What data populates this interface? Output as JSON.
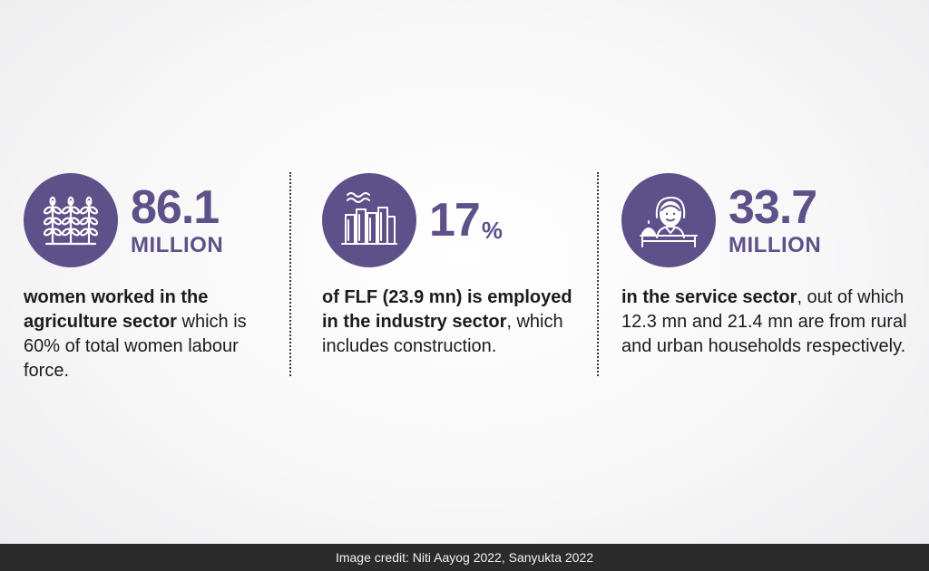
{
  "stats": [
    {
      "icon": "wheat-icon",
      "value": "86.1",
      "unit": "MILLION",
      "bold": "women worked in the agriculture sector",
      "rest": " which is 60% of total women labour force."
    },
    {
      "icon": "factory-icon",
      "value": "17",
      "unit": "%",
      "prefix": "of FLF (23.9 mn) is ",
      "bold": "employed in the industry sector",
      "rest": ", which includes construction."
    },
    {
      "icon": "service-worker-icon",
      "value": "33.7",
      "unit": "MILLION",
      "bold": "in the service sector",
      "rest": ", out of which 12.3 mn and 21.4 mn are from rural and urban households respectively."
    }
  ],
  "colors": {
    "accent": "#5e5189",
    "footer_bg": "#2b2b2b"
  },
  "footer": {
    "credit": "Image credit: Niti Aayog 2022, Sanyukta 2022"
  }
}
